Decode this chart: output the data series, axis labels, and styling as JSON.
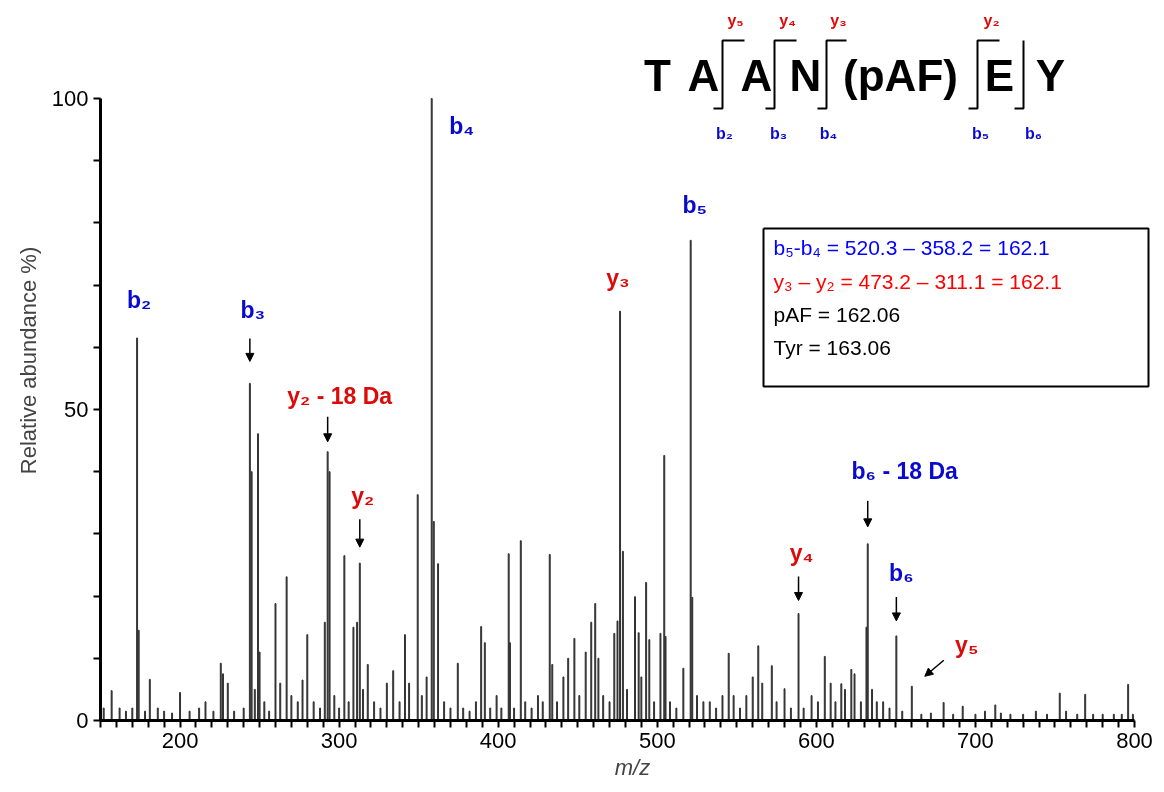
{
  "chart_data": {
    "type": "bar",
    "color": "#333333",
    "xlabel": "m/z",
    "ylabel": "Relative abundance %)",
    "xlim": [
      150,
      800
    ],
    "ylim": [
      0,
      100
    ],
    "xticks": [
      {
        "value": 150,
        "label": null
      },
      {
        "value": 160,
        "label": null
      },
      {
        "value": 170,
        "label": null
      },
      {
        "value": 180,
        "label": null
      },
      {
        "value": 190,
        "label": null
      },
      200,
      {
        "value": 210,
        "label": null
      },
      {
        "value": 220,
        "label": null
      },
      {
        "value": 230,
        "label": null
      },
      {
        "value": 240,
        "label": null
      },
      {
        "value": 250,
        "label": null
      },
      {
        "value": 260,
        "label": null
      },
      {
        "value": 270,
        "label": null
      },
      {
        "value": 280,
        "label": null
      },
      {
        "value": 290,
        "label": null
      },
      300,
      {
        "value": 310,
        "label": null
      },
      {
        "value": 320,
        "label": null
      },
      {
        "value": 330,
        "label": null
      },
      {
        "value": 340,
        "label": null
      },
      {
        "value": 350,
        "label": null
      },
      {
        "value": 360,
        "label": null
      },
      {
        "value": 370,
        "label": null
      },
      {
        "value": 380,
        "label": null
      },
      {
        "value": 390,
        "label": null
      },
      400,
      {
        "value": 410,
        "label": null
      },
      {
        "value": 420,
        "label": null
      },
      {
        "value": 430,
        "label": null
      },
      {
        "value": 440,
        "label": null
      },
      {
        "value": 450,
        "label": null
      },
      {
        "value": 460,
        "label": null
      },
      {
        "value": 470,
        "label": null
      },
      {
        "value": 480,
        "label": null
      },
      {
        "value": 490,
        "label": null
      },
      500,
      {
        "value": 510,
        "label": null
      },
      {
        "value": 520,
        "label": null
      },
      {
        "value": 530,
        "label": null
      },
      {
        "value": 540,
        "label": null
      },
      {
        "value": 550,
        "label": null
      },
      {
        "value": 560,
        "label": null
      },
      {
        "value": 570,
        "label": null
      },
      {
        "value": 580,
        "label": null
      },
      {
        "value": 590,
        "label": null
      },
      600,
      {
        "value": 610,
        "label": null
      },
      {
        "value": 620,
        "label": null
      },
      {
        "value": 630,
        "label": null
      },
      {
        "value": 640,
        "label": null
      },
      {
        "value": 650,
        "label": null
      },
      {
        "value": 660,
        "label": null
      },
      {
        "value": 670,
        "label": null
      },
      {
        "value": 680,
        "label": null
      },
      {
        "value": 690,
        "label": null
      },
      700,
      {
        "value": 710,
        "label": null
      },
      {
        "value": 720,
        "label": null
      },
      {
        "value": 730,
        "label": null
      },
      {
        "value": 740,
        "label": null
      },
      {
        "value": 750,
        "label": null
      },
      {
        "value": 760,
        "label": null
      },
      {
        "value": 770,
        "label": null
      },
      {
        "value": 780,
        "label": null
      },
      {
        "value": 790,
        "label": null
      },
      800
    ],
    "yticks": [
      0,
      {
        "value": 10,
        "label": null
      },
      {
        "value": 20,
        "label": null
      },
      {
        "value": 30,
        "label": null
      },
      {
        "value": 40,
        "label": null
      },
      50,
      {
        "value": 60,
        "label": null
      },
      {
        "value": 70,
        "label": null
      },
      {
        "value": 80,
        "label": null
      },
      {
        "value": 90,
        "label": null
      },
      100
    ],
    "x": [
      152,
      157,
      162,
      166,
      170,
      173,
      174,
      178,
      181,
      186,
      190,
      195,
      200,
      206,
      212,
      216,
      221,
      225.6,
      227,
      230,
      234,
      240,
      243.9,
      245,
      247,
      249,
      250,
      253,
      256,
      260,
      263,
      267,
      270,
      274,
      277,
      280,
      284,
      288,
      291,
      292.8,
      294,
      297,
      300,
      303.3,
      306,
      309,
      311.3,
      313,
      315,
      318,
      322,
      326,
      330,
      334,
      338,
      341.4,
      344,
      349.4,
      352,
      355,
      358.2,
      359.5,
      362.2,
      366,
      370,
      374.6,
      378,
      382,
      386,
      389.3,
      391.6,
      395,
      399,
      402,
      406.6,
      407.4,
      410,
      414.2,
      417,
      421,
      425,
      428,
      432.4,
      434,
      437,
      441,
      444,
      447.9,
      451,
      455,
      458.5,
      461,
      463,
      466,
      470,
      473,
      475,
      476.6,
      478.4,
      481,
      486,
      488.3,
      490,
      493,
      495,
      498,
      502,
      504.4,
      505.2,
      508,
      512,
      516.4,
      521,
      522,
      525,
      529,
      533,
      537,
      541,
      544.9,
      548,
      552,
      556,
      560,
      563.5,
      566,
      572,
      575,
      580,
      584,
      588.8,
      592,
      597,
      601,
      605.3,
      609,
      612,
      615.7,
      618,
      622,
      624,
      628,
      631.5,
      632.3,
      635,
      638,
      642,
      646,
      650.3,
      654,
      660,
      666,
      672,
      680,
      686,
      692,
      700,
      706,
      712.5,
      716,
      722,
      730,
      738,
      745,
      753,
      757,
      764,
      769,
      774,
      780,
      787,
      792,
      796,
      799
    ],
    "values": [
      2,
      4.8,
      2,
      1.5,
      2,
      61.5,
      14.5,
      1.5,
      6.6,
      2,
      1.5,
      1.2,
      4.5,
      1.5,
      2,
      3,
      1.5,
      9.2,
      7.5,
      6,
      1.5,
      2,
      54.2,
      40,
      5,
      46.1,
      11,
      3,
      1.5,
      18.8,
      6,
      23.1,
      4,
      3,
      6.5,
      13.8,
      3,
      2,
      15.8,
      43.2,
      40,
      4,
      2,
      26.5,
      3,
      15,
      15.8,
      25.3,
      5,
      9,
      3,
      2,
      6,
      8,
      3,
      13.8,
      6,
      36.3,
      4,
      7,
      100,
      32,
      25.2,
      3,
      2,
      9.2,
      2,
      1.5,
      3,
      15.1,
      12.5,
      2,
      4,
      2,
      26.8,
      12.5,
      2,
      28.9,
      3,
      2,
      4,
      3,
      26.7,
      9,
      3,
      7,
      10,
      13.2,
      4,
      11,
      15.8,
      18.8,
      10,
      4,
      3,
      14,
      16,
      65.8,
      27.2,
      5,
      19.9,
      14.1,
      7,
      22.2,
      13,
      3,
      14,
      42.6,
      13.5,
      3,
      2,
      8.4,
      77.2,
      19.8,
      4,
      3,
      3,
      2,
      4,
      10.8,
      4,
      2,
      4,
      7,
      12,
      6,
      8.8,
      3,
      5.1,
      2,
      17.2,
      2,
      4,
      3,
      10.3,
      6,
      3,
      5.9,
      5,
      8.2,
      7.5,
      3,
      15,
      28.4,
      5,
      3,
      3,
      2,
      13.6,
      1.5,
      5.5,
      1,
      1.2,
      2.9,
      1,
      2.3,
      1,
      1.5,
      2.5,
      1.2,
      1,
      1,
      1.5,
      1,
      4.4,
      1.5,
      1,
      4.2,
      1,
      1,
      1,
      1,
      5.8,
      1
    ],
    "annotations": [
      {
        "text": "b₂",
        "x": 173,
        "y": 61.5
      },
      {
        "text": "b₃",
        "x": 243.9,
        "y": 54.2
      },
      {
        "text": "y₂ - 18 Da",
        "x": 292.8,
        "y": 43.2
      },
      {
        "text": "y₂",
        "x": 313,
        "y": 25.3
      },
      {
        "text": "b₄",
        "x": 358.2,
        "y": 100
      },
      {
        "text": "y₃",
        "x": 476.6,
        "y": 65.8
      },
      {
        "text": "b₅",
        "x": 521,
        "y": 77.2
      },
      {
        "text": "y₄",
        "x": 588.8,
        "y": 17.2
      },
      {
        "text": "b₆ - 18 Da",
        "x": 632.3,
        "y": 28.4
      },
      {
        "text": "b₆",
        "x": 650.3,
        "y": 13.6
      },
      {
        "text": "y₅",
        "x": 660,
        "y": 5.5
      },
      "b₅-b₄ = 520.3 – 358.2 = 162.1",
      "y₃ – y₂ = 473.2 – 311.1 = 162.1",
      "pAF = 162.06",
      "Tyr = 163.06",
      "T",
      "A",
      "A",
      "N",
      "(pAF)",
      "E",
      "Y",
      "y₅",
      "y₄",
      "y₃",
      "y₂",
      "b₂",
      "b₃",
      "b₄",
      "b₅",
      "b₆"
    ]
  }
}
